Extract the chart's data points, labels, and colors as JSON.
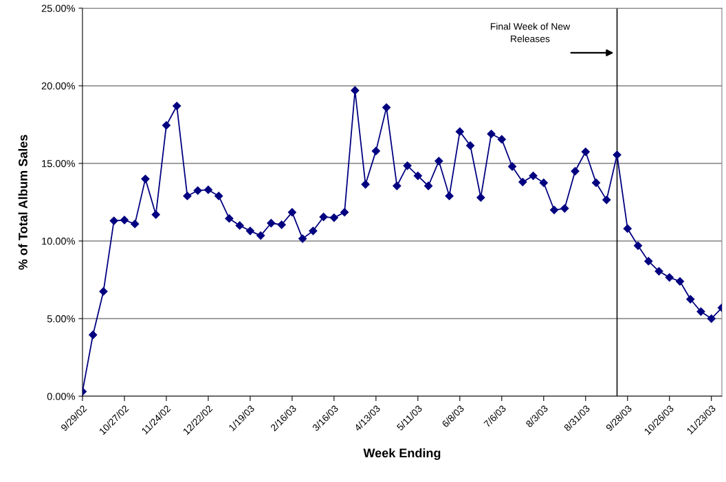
{
  "chart_data": {
    "type": "line",
    "xlabel": "Week Ending",
    "ylabel": "% of Total Album Sales",
    "x": [
      "2002-09-29",
      "2002-10-06",
      "2002-10-13",
      "2002-10-20",
      "2002-10-27",
      "2002-11-03",
      "2002-11-10",
      "2002-11-17",
      "2002-11-24",
      "2002-12-01",
      "2002-12-08",
      "2002-12-15",
      "2002-12-22",
      "2002-12-29",
      "2003-01-05",
      "2003-01-12",
      "2003-01-19",
      "2003-01-26",
      "2003-02-02",
      "2003-02-09",
      "2003-02-16",
      "2003-02-23",
      "2003-03-02",
      "2003-03-09",
      "2003-03-16",
      "2003-03-23",
      "2003-03-30",
      "2003-04-06",
      "2003-04-13",
      "2003-04-20",
      "2003-04-27",
      "2003-05-04",
      "2003-05-11",
      "2003-05-18",
      "2003-05-25",
      "2003-06-01",
      "2003-06-08",
      "2003-06-15",
      "2003-06-22",
      "2003-06-29",
      "2003-07-06",
      "2003-07-13",
      "2003-07-20",
      "2003-07-27",
      "2003-08-03",
      "2003-08-10",
      "2003-08-17",
      "2003-08-24",
      "2003-08-31",
      "2003-09-07",
      "2003-09-14",
      "2003-09-21",
      "2003-09-28",
      "2003-10-05",
      "2003-10-12",
      "2003-10-19",
      "2003-10-26",
      "2003-11-02",
      "2003-11-09",
      "2003-11-16",
      "2003-11-23",
      "2003-11-30"
    ],
    "series": [
      {
        "color": "#000080",
        "values": [
          0.3,
          3.95,
          6.75,
          11.3,
          11.35,
          11.1,
          14.0,
          11.7,
          17.45,
          18.7,
          12.9,
          13.25,
          13.3,
          12.9,
          11.45,
          11.0,
          10.65,
          10.35,
          11.15,
          11.05,
          11.85,
          10.15,
          10.65,
          11.55,
          11.5,
          11.85,
          19.7,
          13.65,
          15.8,
          18.6,
          13.55,
          14.85,
          14.2,
          13.55,
          15.15,
          12.9,
          17.05,
          16.15,
          12.8,
          16.9,
          16.55,
          14.8,
          13.8,
          14.2,
          13.75,
          12.0,
          12.1,
          14.5,
          15.75,
          13.75,
          12.65,
          15.55,
          10.8,
          9.7,
          8.7,
          8.05,
          7.65,
          7.4,
          6.25,
          5.45,
          5.0,
          5.7
        ]
      }
    ],
    "xlim": [
      "2002-09-29",
      "2003-11-30"
    ],
    "xticks": [
      {
        "value": "2002-09-29",
        "label": "9/29/02"
      },
      {
        "value": "2002-10-27",
        "label": "10/27/02"
      },
      {
        "value": "2002-11-24",
        "label": "11/24/02"
      },
      {
        "value": "2002-12-22",
        "label": "12/22/02"
      },
      {
        "value": "2003-01-19",
        "label": "1/19/03"
      },
      {
        "value": "2003-02-16",
        "label": "2/16/03"
      },
      {
        "value": "2003-03-16",
        "label": "3/16/03"
      },
      {
        "value": "2003-04-13",
        "label": "4/13/03"
      },
      {
        "value": "2003-05-11",
        "label": "5/11/03"
      },
      {
        "value": "2003-06-08",
        "label": "6/8/03"
      },
      {
        "value": "2003-07-06",
        "label": "7/6/03"
      },
      {
        "value": "2003-08-03",
        "label": "8/3/03"
      },
      {
        "value": "2003-08-31",
        "label": "8/31/03"
      },
      {
        "value": "2003-09-28",
        "label": "9/28/03"
      },
      {
        "value": "2003-10-26",
        "label": "10/26/03"
      },
      {
        "value": "2003-11-23",
        "label": "11/23/03"
      }
    ],
    "ylim": [
      0,
      25
    ],
    "yticks": [
      {
        "value": 0,
        "label": "0.00%"
      },
      {
        "value": 5,
        "label": "5.00%"
      },
      {
        "value": 10,
        "label": "10.00%"
      },
      {
        "value": 15,
        "label": "15.00%"
      },
      {
        "value": 20,
        "label": "20.00%"
      },
      {
        "value": 25,
        "label": "25.00%"
      }
    ],
    "ref_lines": [
      {
        "axis": "x",
        "value": "2003-09-21",
        "color": "#000000"
      }
    ],
    "annotations": [
      "Final Week of New\nReleases"
    ],
    "grid": "y",
    "marker": "diamond",
    "line_style": "solid",
    "legend": false
  }
}
